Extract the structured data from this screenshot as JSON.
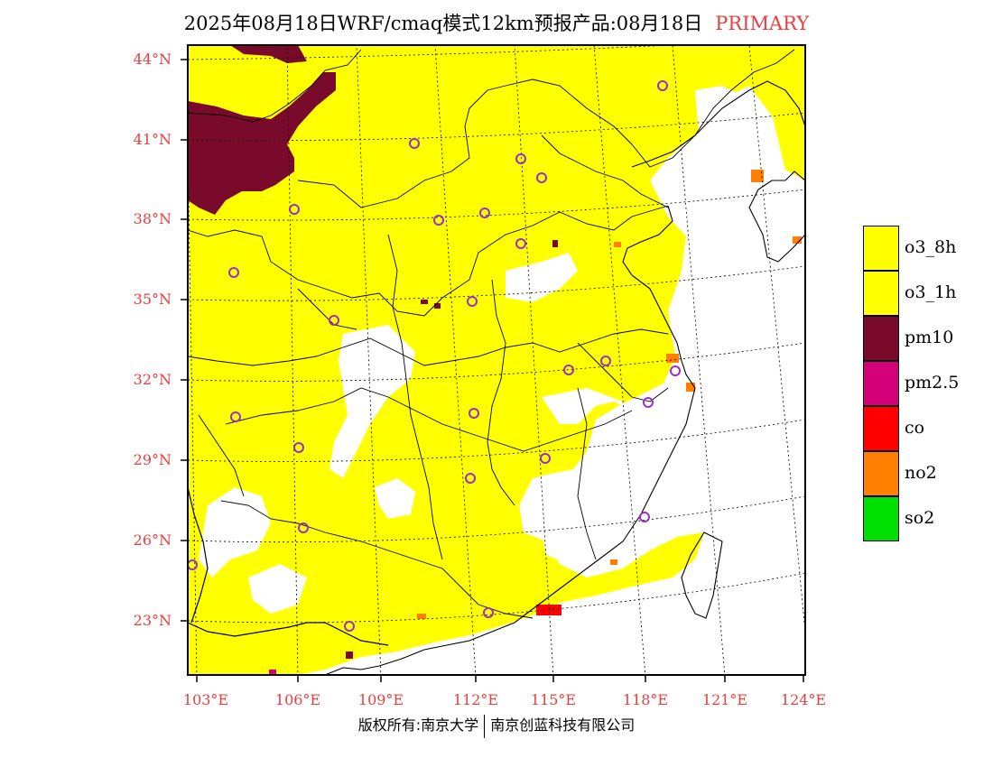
{
  "title": {
    "text": "2025年08月18日WRF/cmaq模式12km预报产品:08月18日",
    "tag": "PRIMARY"
  },
  "map": {
    "lat_labels": [
      "44°N",
      "41°N",
      "38°N",
      "35°N",
      "32°N",
      "29°N",
      "26°N",
      "23°N"
    ],
    "lon_labels": [
      "103°E",
      "106°E",
      "109°E",
      "112°E",
      "115°E",
      "118°E",
      "121°E",
      "124°E"
    ],
    "primary_pollutant_dominant": "o3_8h",
    "stations_count": 27
  },
  "legend": {
    "items": [
      {
        "label": "o3_8h",
        "color": "#ffff00"
      },
      {
        "label": "o3_1h",
        "color": "#ffff00"
      },
      {
        "label": "pm10",
        "color": "#7a0a2b"
      },
      {
        "label": "pm2.5",
        "color": "#d4007a"
      },
      {
        "label": "co",
        "color": "#ff0000"
      },
      {
        "label": "no2",
        "color": "#ff7f00"
      },
      {
        "label": "so2",
        "color": "#00e000"
      }
    ]
  },
  "colors": {
    "o3": "#ffff00",
    "pm10": "#7a0a2b",
    "no2": "#ff7f00",
    "co": "#ff0000",
    "station": "#9a2fd0",
    "label": "#e83e3e"
  },
  "copyright": {
    "left": "版权所有:南京大学",
    "right": "南京创蓝科技有限公司"
  }
}
